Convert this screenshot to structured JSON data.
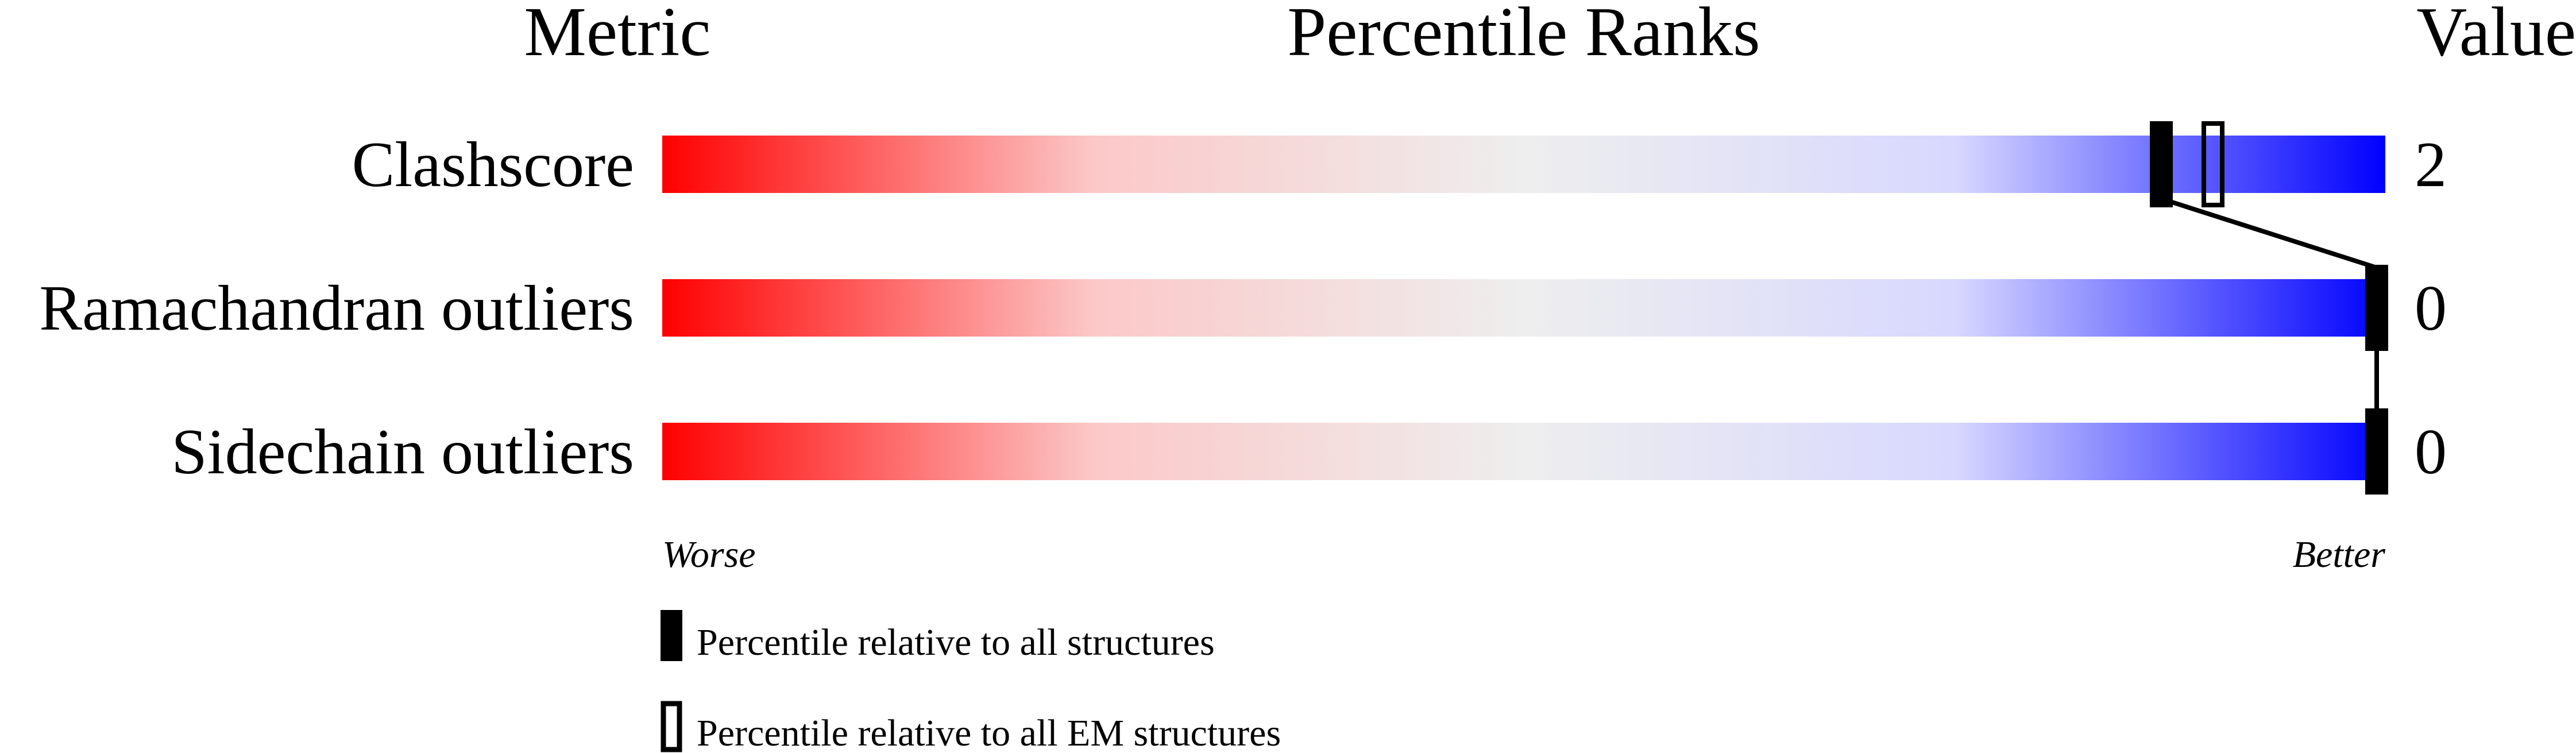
{
  "chart_data": {
    "type": "bar",
    "title": "Percentile Ranks",
    "column_headers": {
      "metric": "Metric",
      "ranks": "Percentile Ranks",
      "value": "Value"
    },
    "categories": [
      "Clashscore",
      "Ramachandran outliers",
      "Sidechain outliers"
    ],
    "values": [
      "2",
      "0",
      "0"
    ],
    "series": [
      {
        "name": "Percentile relative to all structures",
        "marker": "filled",
        "percentiles": [
          87,
          100,
          100
        ]
      },
      {
        "name": "Percentile relative to all EM structures",
        "marker": "hollow",
        "percentiles": [
          90,
          null,
          null
        ]
      }
    ],
    "xlim": [
      0,
      100
    ],
    "axis_labels": {
      "left": "Worse",
      "right": "Better"
    },
    "gradient_colors": [
      "#ff0000",
      "#fcc8c8",
      "#eeeeee",
      "#d8d8ff",
      "#0000ff"
    ]
  }
}
